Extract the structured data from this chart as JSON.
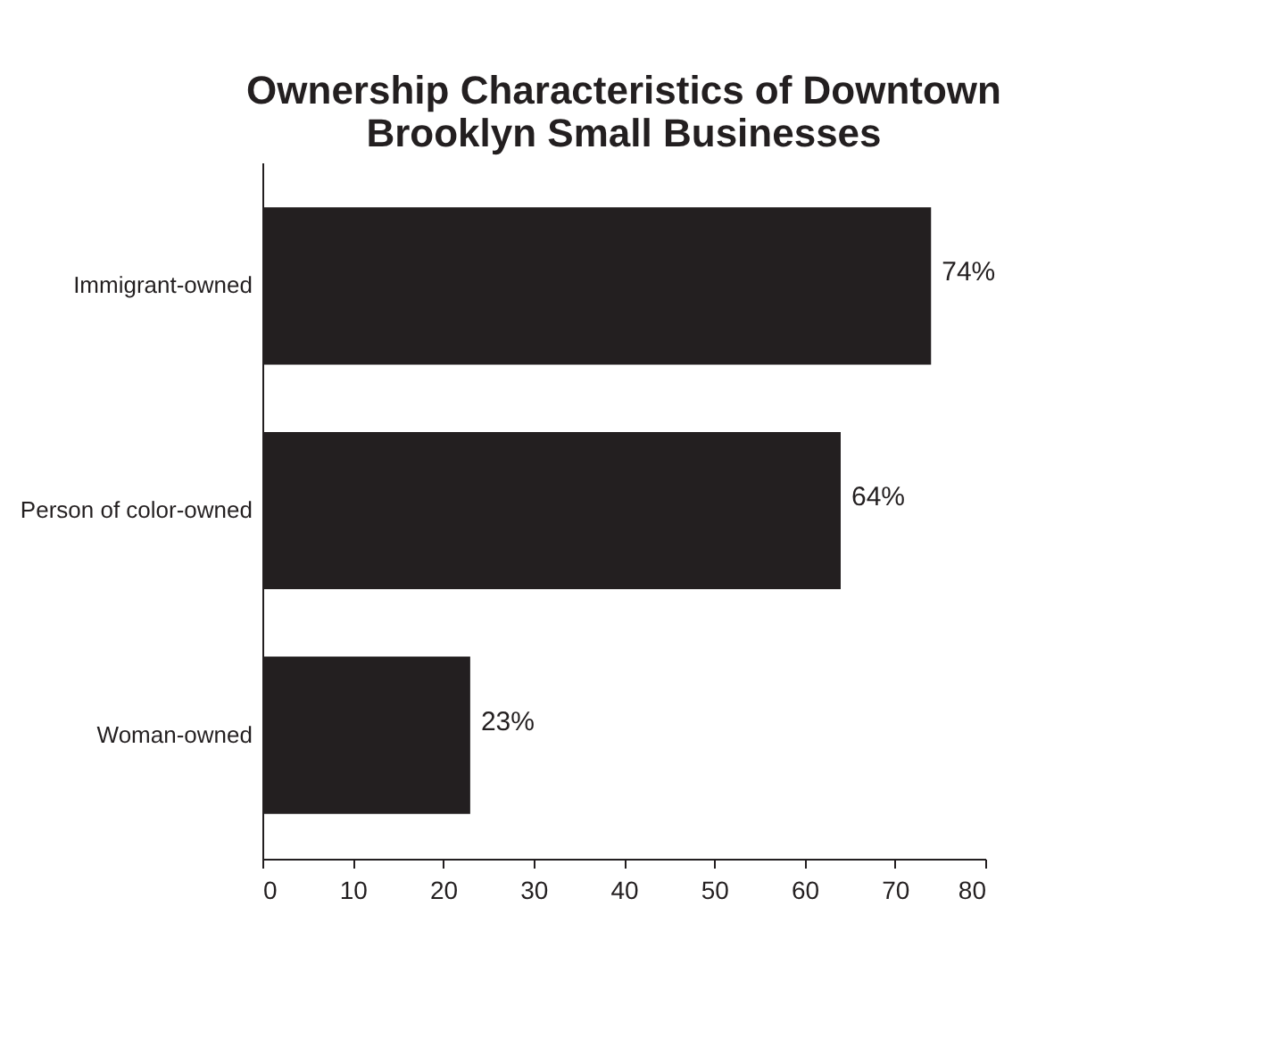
{
  "chart_data": {
    "type": "bar",
    "orientation": "horizontal",
    "title": [
      "Ownership Characteristics of Downtown",
      "Brooklyn Small Businesses"
    ],
    "categories": [
      "Immigrant-owned",
      "Person of color-owned",
      "Woman-owned"
    ],
    "values": [
      74,
      64,
      23
    ],
    "value_labels": [
      "74%",
      "64%",
      "23%"
    ],
    "color": "#231f20",
    "xlim": [
      0,
      80
    ],
    "xticks": [
      0,
      10,
      20,
      30,
      40,
      50,
      60,
      70,
      80
    ],
    "grid": false
  }
}
